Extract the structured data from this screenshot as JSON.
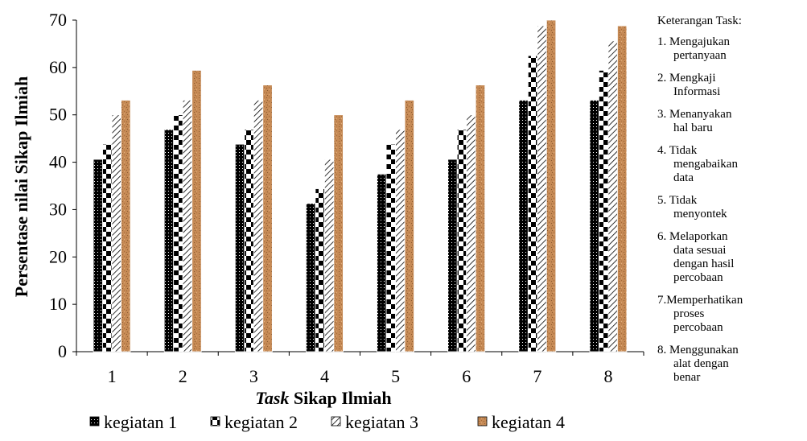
{
  "chart_data": {
    "type": "bar",
    "categories": [
      "1",
      "2",
      "3",
      "4",
      "5",
      "6",
      "7",
      "8"
    ],
    "series": [
      {
        "name": "kegiatan 1",
        "values": [
          40.6,
          46.9,
          43.8,
          31.3,
          37.5,
          40.6,
          53.1,
          53.1
        ],
        "pattern": "dots-dark"
      },
      {
        "name": "kegiatan 2",
        "values": [
          43.8,
          50.0,
          46.9,
          34.4,
          43.8,
          46.9,
          62.5,
          59.4
        ],
        "pattern": "checker"
      },
      {
        "name": "kegiatan 3",
        "values": [
          50.0,
          53.1,
          53.1,
          40.6,
          46.9,
          50.0,
          68.8,
          65.6
        ],
        "pattern": "diagonal-hatch"
      },
      {
        "name": "kegiatan 4",
        "values": [
          53.1,
          59.4,
          56.3,
          50.0,
          53.1,
          56.3,
          70.0,
          68.8
        ],
        "pattern": "cork-texture"
      }
    ],
    "yticks": [
      "0",
      "10",
      "20",
      "30",
      "40",
      "50",
      "60",
      "70"
    ],
    "ylim": [
      0,
      70
    ],
    "ylabel": "Persentase nilai Sikap Ilmiah",
    "xlabel_italic": "Task",
    "xlabel_rest": " Sikap Ilmiah",
    "legend_placement": "bottom",
    "colors": {
      "dark": "#000000",
      "cork": "#c68a55",
      "cork_dark": "#8a5a30"
    }
  },
  "notes": {
    "heading": "Keterangan Task:",
    "items": [
      {
        "num": "1. ",
        "lines": [
          "Mengajukan",
          "pertanyaan"
        ]
      },
      {
        "num": "2. ",
        "lines": [
          "Mengkaji",
          "Informasi"
        ]
      },
      {
        "num": "3. ",
        "lines": [
          "Menanyakan",
          "hal baru"
        ]
      },
      {
        "num": "4. ",
        "lines": [
          "Tidak",
          "mengabaikan",
          "data"
        ]
      },
      {
        "num": "5. ",
        "lines": [
          "Tidak",
          "menyontek"
        ]
      },
      {
        "num": "6. ",
        "lines": [
          "Melaporkan",
          "data sesuai",
          "dengan hasil",
          "percobaan"
        ]
      },
      {
        "num": "7.",
        "lines": [
          "Memperhatikan",
          "proses",
          "percobaan"
        ]
      },
      {
        "num": "8. ",
        "lines": [
          "Menggunakan",
          "alat dengan",
          "benar"
        ]
      }
    ]
  }
}
